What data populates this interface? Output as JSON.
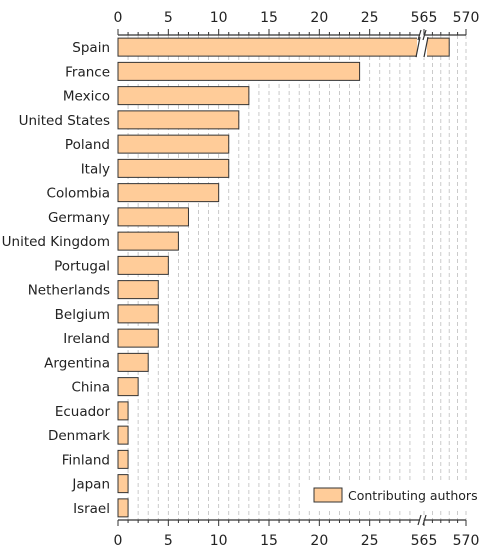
{
  "chart_data": {
    "type": "bar",
    "orientation": "horizontal",
    "title": "",
    "xlabel": "",
    "ylabel": "",
    "categories": [
      "Spain",
      "France",
      "Mexico",
      "United States",
      "Poland",
      "Italy",
      "Colombia",
      "Germany",
      "United Kingdom",
      "Portugal",
      "Netherlands",
      "Belgium",
      "Ireland",
      "Argentina",
      "China",
      "Ecuador",
      "Denmark",
      "Finland",
      "Japan",
      "Israel"
    ],
    "series": [
      {
        "name": "Contributing authors",
        "values": [
          568,
          24,
          13,
          12,
          11,
          11,
          10,
          7,
          6,
          5,
          4,
          4,
          4,
          3,
          2,
          1,
          1,
          1,
          1,
          1
        ],
        "color": "#FFCC99"
      }
    ],
    "x_axis_broken": true,
    "x_segments": [
      {
        "range": [
          0,
          30
        ],
        "ticks": [
          0,
          5,
          10,
          15,
          20,
          25
        ]
      },
      {
        "range": [
          565,
          570
        ],
        "ticks": [
          565,
          570
        ]
      }
    ],
    "grid": true,
    "legend_position": "bottom-right",
    "tick_labels_top_and_bottom": true
  }
}
